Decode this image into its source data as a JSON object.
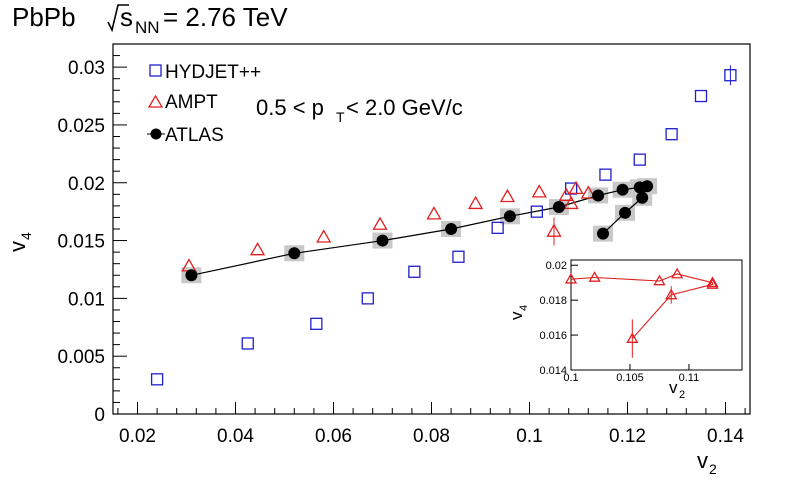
{
  "header": {
    "title_main": "PbPb ",
    "title_sqrt": "s",
    "title_sub": "NN",
    "title_rest": " = 2.76 TeV"
  },
  "annotation": {
    "pt_left": "0.5 < p",
    "pt_sub": "T",
    "pt_right": " < 2.0 GeV/c"
  },
  "colors": {
    "hydjet": "#1f1fcc",
    "ampt": "#e02020",
    "atlas": "#000000",
    "syst_box": "#c8c8c8"
  },
  "chart_data": [
    {
      "type": "scatter",
      "xlabel": "v",
      "xlabel_sub": "2",
      "ylabel": "v",
      "ylabel_sub": "4",
      "xlim": [
        0.015,
        0.145
      ],
      "ylim": [
        0,
        0.032
      ],
      "x_ticks": [
        0.02,
        0.04,
        0.06,
        0.08,
        0.1,
        0.12,
        0.14
      ],
      "x_tick_labels": [
        "0.02",
        "0.04",
        "0.06",
        "0.08",
        "0.1",
        "0.12",
        "0.14"
      ],
      "y_ticks": [
        0,
        0.005,
        0.01,
        0.015,
        0.02,
        0.025,
        0.03
      ],
      "y_tick_labels": [
        "0",
        "0.005",
        "0.01",
        "0.015",
        "0.02",
        "0.025",
        "0.03"
      ],
      "legend_position": "top-left",
      "series": [
        {
          "name": "HYDJET++",
          "marker": "open-square",
          "color": "#1f1fcc",
          "points": [
            [
              0.024,
              0.003
            ],
            [
              0.0425,
              0.0061
            ],
            [
              0.0565,
              0.0078
            ],
            [
              0.067,
              0.01
            ],
            [
              0.0765,
              0.0123
            ],
            [
              0.0855,
              0.0136
            ],
            [
              0.0935,
              0.0161
            ],
            [
              0.1015,
              0.0175
            ],
            [
              0.1085,
              0.0195
            ],
            [
              0.1155,
              0.0207
            ],
            [
              0.1225,
              0.022
            ],
            [
              0.129,
              0.0242
            ],
            [
              0.135,
              0.0275
            ],
            [
              0.141,
              0.0293
            ]
          ]
        },
        {
          "name": "AMPT",
          "marker": "open-triangle",
          "color": "#e02020",
          "points": [
            [
              0.0305,
              0.0128
            ],
            [
              0.0445,
              0.0142
            ],
            [
              0.058,
              0.0153
            ],
            [
              0.0695,
              0.0164
            ],
            [
              0.0805,
              0.0173
            ],
            [
              0.089,
              0.0182
            ],
            [
              0.0955,
              0.0188
            ],
            [
              0.102,
              0.0192
            ],
            [
              0.1075,
              0.0189
            ],
            [
              0.112,
              0.0191
            ],
            [
              0.1095,
              0.0195
            ],
            [
              0.105,
              0.0158
            ],
            [
              0.1085,
              0.0182
            ]
          ]
        },
        {
          "name": "ATLAS",
          "marker": "filled-circle",
          "color": "#000000",
          "connected": true,
          "points": [
            [
              0.031,
              0.012
            ],
            [
              0.052,
              0.0139
            ],
            [
              0.07,
              0.015
            ],
            [
              0.084,
              0.016
            ],
            [
              0.096,
              0.0171
            ],
            [
              0.106,
              0.0179
            ],
            [
              0.114,
              0.0189
            ],
            [
              0.119,
              0.0194
            ],
            [
              0.1225,
              0.0196
            ],
            [
              0.124,
              0.0197
            ],
            [
              0.123,
              0.0187
            ],
            [
              0.1195,
              0.0174
            ],
            [
              0.115,
              0.0156
            ]
          ]
        }
      ]
    },
    {
      "type": "line",
      "inset": true,
      "xlabel": "v",
      "xlabel_sub": "2",
      "ylabel": "v",
      "ylabel_sub": "4",
      "xlim": [
        0.1,
        0.1145
      ],
      "ylim": [
        0.014,
        0.0203
      ],
      "x_ticks": [
        0.1,
        0.105,
        0.11
      ],
      "x_tick_labels": [
        "0.1",
        "0.105",
        "0.11"
      ],
      "y_ticks": [
        0.014,
        0.016,
        0.018,
        0.02
      ],
      "y_tick_labels": [
        "0.014",
        "0.016",
        "0.018",
        "0.02"
      ],
      "series": [
        {
          "name": "AMPT",
          "marker": "open-triangle",
          "color": "#e02020",
          "points": [
            [
              0.1,
              0.0192
            ],
            [
              0.102,
              0.0193
            ],
            [
              0.1075,
              0.0191
            ],
            [
              0.109,
              0.0195
            ],
            [
              0.112,
              0.019
            ],
            [
              0.112,
              0.0189
            ],
            [
              0.1085,
              0.0183
            ],
            [
              0.1052,
              0.0158
            ]
          ],
          "error_bar_points": [
            6,
            7
          ],
          "errors": [
            0.0005,
            0.0011
          ]
        }
      ]
    }
  ]
}
